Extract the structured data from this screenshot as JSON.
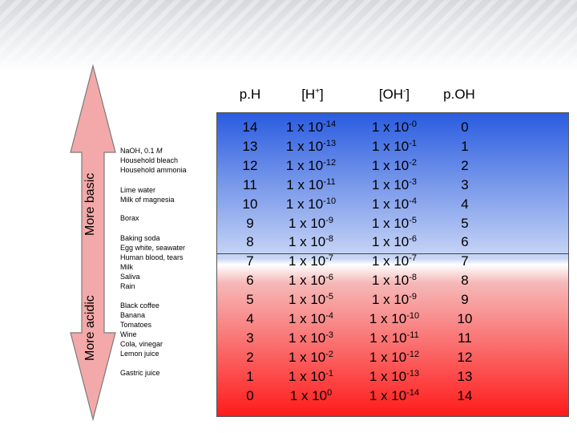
{
  "headers": {
    "ph": "p.H",
    "h_base": "[H",
    "h_sup": "+",
    "h_close": "]",
    "oh_base": "[OH",
    "oh_sup": "-",
    "oh_close": "]",
    "poh": "p.OH"
  },
  "labels": {
    "more_basic": "More basic",
    "more_acidic": "More acidic"
  },
  "examples": {
    "group1": [
      "NaOH, 0.1 M",
      "Household bleach",
      "Household ammonia"
    ],
    "group2": [
      "Lime water",
      "Milk of magnesia"
    ],
    "group3": [
      "Borax"
    ],
    "group4": [
      "Baking soda",
      "Egg white, seawater",
      "Human blood, tears",
      "Milk",
      "Saliva",
      "Rain"
    ],
    "group5": [
      "Black coffee",
      "Banana",
      "Tomatoes",
      "Wine",
      "Cola, vinegar",
      "Lemon juice"
    ],
    "group6": [
      "Gastric juice"
    ]
  },
  "rows": [
    {
      "ph": "14",
      "h_base": "1 x 10",
      "h_exp": "-14",
      "oh_base": "1 x 10",
      "oh_exp": "-0",
      "poh": "0"
    },
    {
      "ph": "13",
      "h_base": "1 x 10",
      "h_exp": "-13",
      "oh_base": "1 x 10",
      "oh_exp": "-1",
      "poh": "1"
    },
    {
      "ph": "12",
      "h_base": "1 x 10",
      "h_exp": "-12",
      "oh_base": "1 x 10",
      "oh_exp": "-2",
      "poh": "2"
    },
    {
      "ph": "11",
      "h_base": "1 x 10",
      "h_exp": "-11",
      "oh_base": "1 x 10",
      "oh_exp": "-3",
      "poh": "3"
    },
    {
      "ph": "10",
      "h_base": "1 x 10",
      "h_exp": "-10",
      "oh_base": "1 x 10",
      "oh_exp": "-4",
      "poh": "4"
    },
    {
      "ph": "9",
      "h_base": "1 x 10",
      "h_exp": "-9",
      "oh_base": "1 x 10",
      "oh_exp": "-5",
      "poh": "5"
    },
    {
      "ph": "8",
      "h_base": "1 x 10",
      "h_exp": "-8",
      "oh_base": "1 x 10",
      "oh_exp": "-6",
      "poh": "6"
    },
    {
      "ph": "7",
      "h_base": "1 x 10",
      "h_exp": "-7",
      "oh_base": "1 x 10",
      "oh_exp": "-7",
      "poh": "7"
    },
    {
      "ph": "6",
      "h_base": "1 x 10",
      "h_exp": "-6",
      "oh_base": "1 x 10",
      "oh_exp": "-8",
      "poh": "8"
    },
    {
      "ph": "5",
      "h_base": "1 x 10",
      "h_exp": "-5",
      "oh_base": "1 x 10",
      "oh_exp": "-9",
      "poh": "9"
    },
    {
      "ph": "4",
      "h_base": "1 x 10",
      "h_exp": "-4",
      "oh_base": "1 x 10",
      "oh_exp": "-10",
      "poh": "10"
    },
    {
      "ph": "3",
      "h_base": "1 x 10",
      "h_exp": "-3",
      "oh_base": "1 x 10",
      "oh_exp": "-11",
      "poh": "11"
    },
    {
      "ph": "2",
      "h_base": "1 x 10",
      "h_exp": "-2",
      "oh_base": "1 x 10",
      "oh_exp": "-12",
      "poh": "12"
    },
    {
      "ph": "1",
      "h_base": "1 x 10",
      "h_exp": "-1",
      "oh_base": "1 x 10",
      "oh_exp": "-13",
      "poh": "13"
    },
    {
      "ph": "0",
      "h_base": "1 x 10",
      "h_exp": "0",
      "oh_base": "1 x 10",
      "oh_exp": "-14",
      "poh": "14"
    }
  ],
  "colors": {
    "basic_top": "#2a5ce0",
    "acidic_bottom": "#ff1a1a",
    "arrow_fill": "#f3a9a9"
  }
}
